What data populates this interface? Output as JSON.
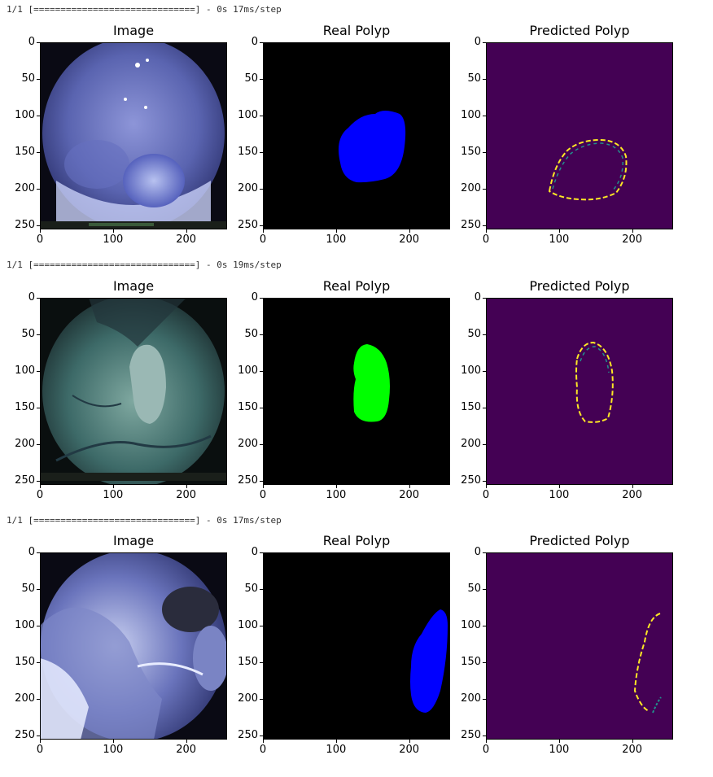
{
  "rows": [
    {
      "log": "1/1 [==============================] - 0s 17ms/step",
      "mask_color": "#0000ff"
    },
    {
      "log": "1/1 [==============================] - 0s 19ms/step",
      "mask_color": "#00ff00"
    },
    {
      "log": "1/1 [==============================] - 0s 17ms/step",
      "mask_color": "#0000ff"
    }
  ],
  "titles": {
    "image": "Image",
    "real": "Real Polyp",
    "pred": "Predicted Polyp"
  },
  "axes": {
    "y_ticks": [
      "0",
      "50",
      "100",
      "150",
      "200",
      "250"
    ],
    "x_ticks": [
      "0",
      "100",
      "200"
    ]
  },
  "colors": {
    "pred_background": "#440154",
    "pred_edge_yellow": "#fde725",
    "pred_edge_teal": "#21918c",
    "real_background": "#000000"
  }
}
